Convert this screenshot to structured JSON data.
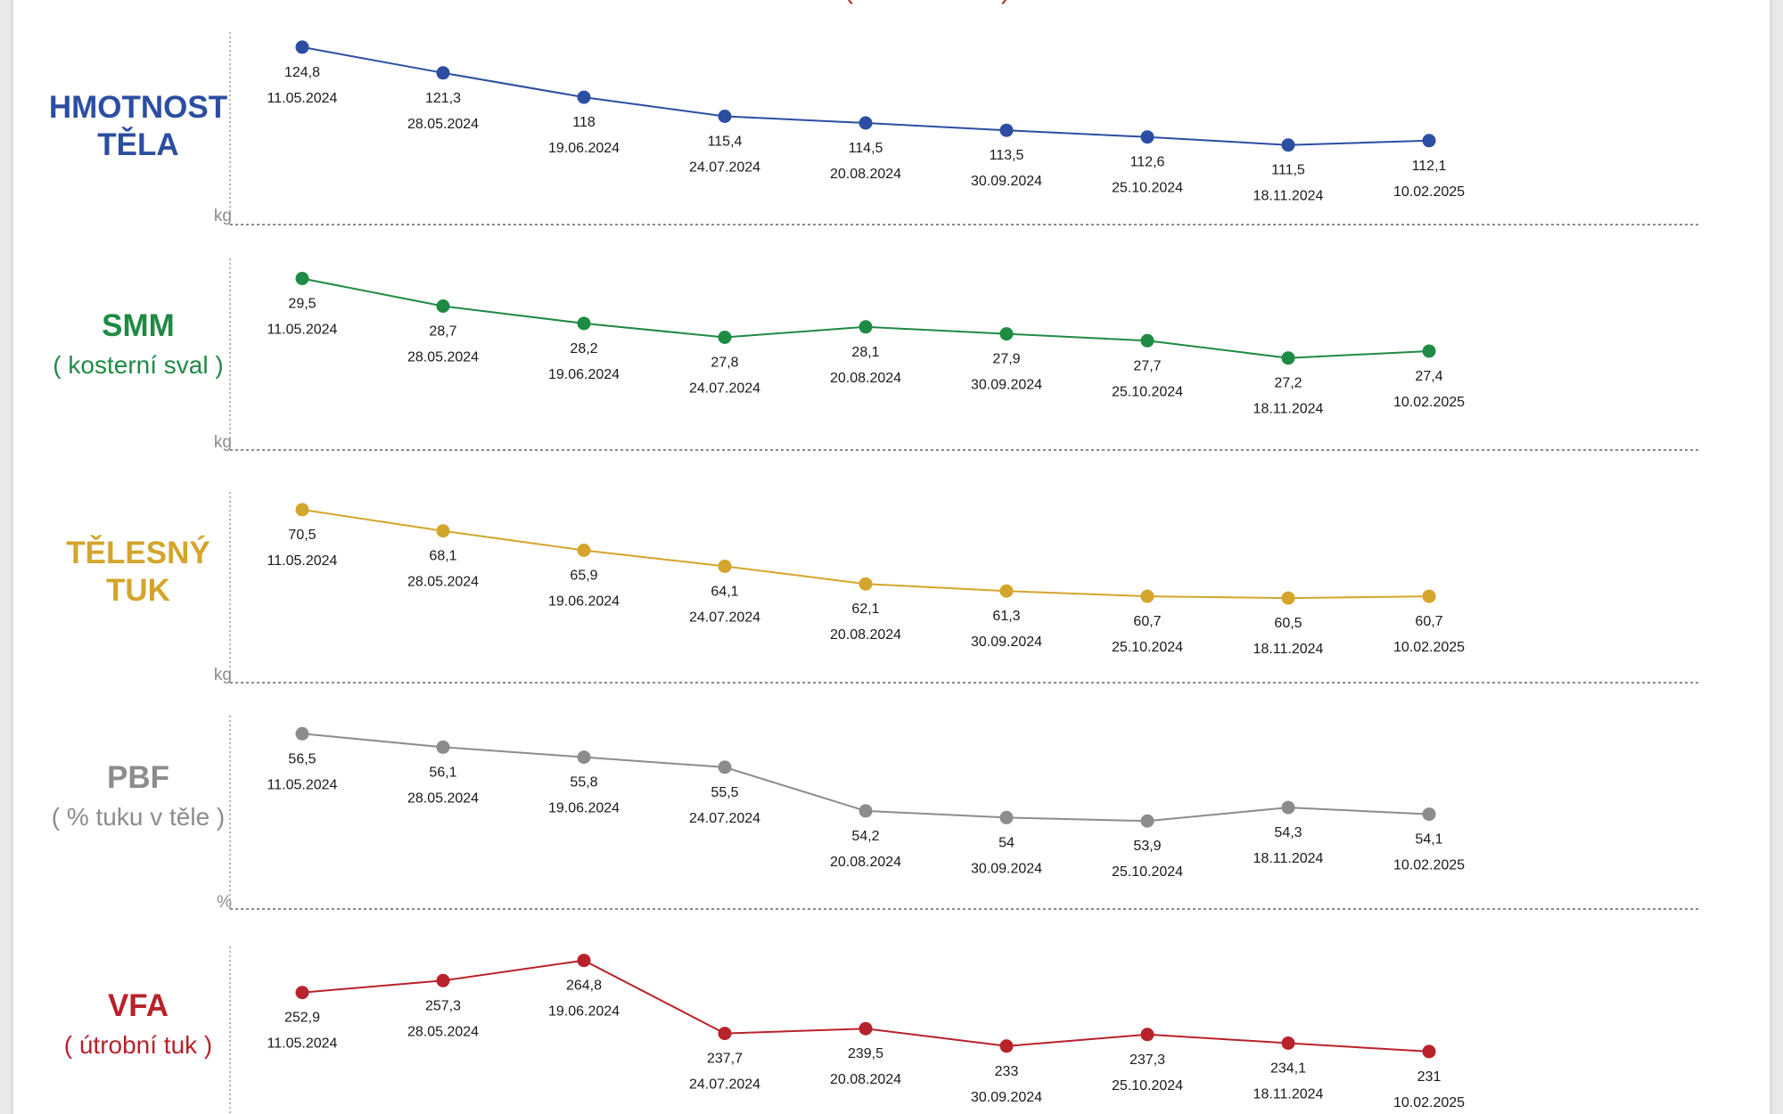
{
  "chart_data": [
    {
      "type": "line",
      "title": "HMOTNOST TĚLA",
      "subtitle": "",
      "unit": "kg",
      "color": "#2b4ea2",
      "x": [
        "11.05.2024",
        "28.05.2024",
        "19.06.2024",
        "24.07.2024",
        "20.08.2024",
        "30.09.2024",
        "25.10.2024",
        "18.11.2024",
        "10.02.2025"
      ],
      "labels": [
        "124,8",
        "121,3",
        "118",
        "115,4",
        "114,5",
        "113,5",
        "112,6",
        "111,5",
        "112,1"
      ],
      "values": [
        124.8,
        121.3,
        118,
        115.4,
        114.5,
        113.5,
        112.6,
        111.5,
        112.1
      ],
      "ylim": [
        110.5,
        126
      ]
    },
    {
      "type": "line",
      "title": "SMM",
      "subtitle": "( kosterní sval )",
      "unit": "kg",
      "color": "#1f8a44",
      "x": [
        "11.05.2024",
        "28.05.2024",
        "19.06.2024",
        "24.07.2024",
        "20.08.2024",
        "30.09.2024",
        "25.10.2024",
        "18.11.2024",
        "10.02.2025"
      ],
      "labels": [
        "29,5",
        "28,7",
        "28,2",
        "27,8",
        "28,1",
        "27,9",
        "27,7",
        "27,2",
        "27,4"
      ],
      "values": [
        29.5,
        28.7,
        28.2,
        27.8,
        28.1,
        27.9,
        27.7,
        27.2,
        27.4
      ],
      "ylim": [
        26.6,
        29.9
      ]
    },
    {
      "type": "line",
      "title": "TĚLESNÝ TUK",
      "subtitle": "",
      "unit": "kg",
      "color": "#d4a52c",
      "x": [
        "11.05.2024",
        "28.05.2024",
        "19.06.2024",
        "24.07.2024",
        "20.08.2024",
        "30.09.2024",
        "25.10.2024",
        "18.11.2024",
        "10.02.2025"
      ],
      "labels": [
        "70,5",
        "68,1",
        "65,9",
        "64,1",
        "62,1",
        "61,3",
        "60,7",
        "60,5",
        "60,7"
      ],
      "values": [
        70.5,
        68.1,
        65.9,
        64.1,
        62.1,
        61.3,
        60.7,
        60.5,
        60.7
      ],
      "ylim": [
        59,
        72
      ]
    },
    {
      "type": "line",
      "title": "PBF",
      "subtitle": "( % tuku v těle )",
      "unit": "%",
      "color": "#8c8c8c",
      "x": [
        "11.05.2024",
        "28.05.2024",
        "19.06.2024",
        "24.07.2024",
        "20.08.2024",
        "30.09.2024",
        "25.10.2024",
        "18.11.2024",
        "10.02.2025"
      ],
      "labels": [
        "56,5",
        "56,1",
        "55,8",
        "55,5",
        "54,2",
        "54",
        "53,9",
        "54,3",
        "54,1"
      ],
      "values": [
        56.5,
        56.1,
        55.8,
        55.5,
        54.2,
        54,
        53.9,
        54.3,
        54.1
      ],
      "ylim": [
        53.4,
        56.8
      ]
    },
    {
      "type": "line",
      "title": "VFA",
      "subtitle": "( útrobní tuk )",
      "unit": "",
      "color": "#b8222a",
      "x": [
        "11.05.2024",
        "28.05.2024",
        "19.06.2024",
        "24.07.2024",
        "20.08.2024",
        "30.09.2024",
        "25.10.2024",
        "18.11.2024",
        "10.02.2025"
      ],
      "labels": [
        "252,9",
        "257,3",
        "264,8",
        "237,7",
        "239,5",
        "233",
        "237,3",
        "234,1",
        "231"
      ],
      "values": [
        252.9,
        257.3,
        264.8,
        237.7,
        239.5,
        233,
        237.3,
        234.1,
        231
      ],
      "ylim": [
        225,
        268
      ]
    }
  ]
}
